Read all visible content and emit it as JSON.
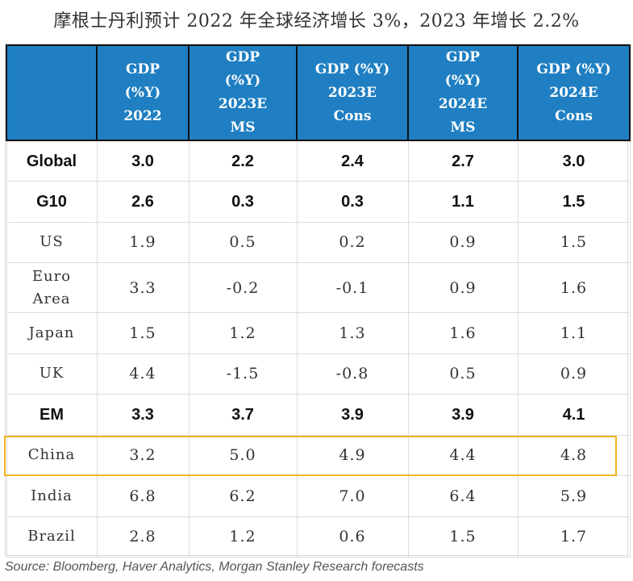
{
  "title": "摩根士丹利预计 2022 年全球经济增长 3%，2023 年增长 2.2%",
  "source": "Source: Bloomberg, Haver Analytics, Morgan Stanley Research forecasts",
  "colors": {
    "header_bg": "#1f7fc2",
    "highlight": "#f2b51c"
  },
  "chart_data": {
    "type": "table",
    "columns": [
      {
        "lines": [
          "GDP",
          "(%Y)",
          "2022"
        ]
      },
      {
        "lines": [
          "GDP",
          "(%Y)",
          "2023E",
          "MS"
        ]
      },
      {
        "lines": [
          "GDP (%Y)",
          "2023E",
          "Cons"
        ]
      },
      {
        "lines": [
          "GDP",
          "(%Y)",
          "2024E",
          "MS"
        ]
      },
      {
        "lines": [
          "GDP (%Y)",
          "2024E",
          "Cons"
        ]
      }
    ],
    "rows": [
      {
        "label": [
          "Global"
        ],
        "values": [
          "3.0",
          "2.2",
          "2.4",
          "2.7",
          "3.0"
        ],
        "bold": true
      },
      {
        "label": [
          "G10"
        ],
        "values": [
          "2.6",
          "0.3",
          "0.3",
          "1.1",
          "1.5"
        ],
        "bold": true
      },
      {
        "label": [
          "US"
        ],
        "values": [
          "1.9",
          "0.5",
          "0.2",
          "0.9",
          "1.5"
        ]
      },
      {
        "label": [
          "Euro",
          "Area"
        ],
        "values": [
          "3.3",
          "-0.2",
          "-0.1",
          "0.9",
          "1.6"
        ]
      },
      {
        "label": [
          "Japan"
        ],
        "values": [
          "1.5",
          "1.2",
          "1.3",
          "1.6",
          "1.1"
        ]
      },
      {
        "label": [
          "UK"
        ],
        "values": [
          "4.4",
          "-1.5",
          "-0.8",
          "0.5",
          "0.9"
        ]
      },
      {
        "label": [
          "EM"
        ],
        "values": [
          "3.3",
          "3.7",
          "3.9",
          "3.9",
          "4.1"
        ],
        "bold": true
      },
      {
        "label": [
          "China"
        ],
        "values": [
          "3.2",
          "5.0",
          "4.9",
          "4.4",
          "4.8"
        ],
        "highlighted": true
      },
      {
        "label": [
          "India"
        ],
        "values": [
          "6.8",
          "6.2",
          "7.0",
          "6.4",
          "5.9"
        ]
      },
      {
        "label": [
          "Brazil"
        ],
        "values": [
          "2.8",
          "1.2",
          "0.6",
          "1.5",
          "1.7"
        ]
      }
    ]
  }
}
